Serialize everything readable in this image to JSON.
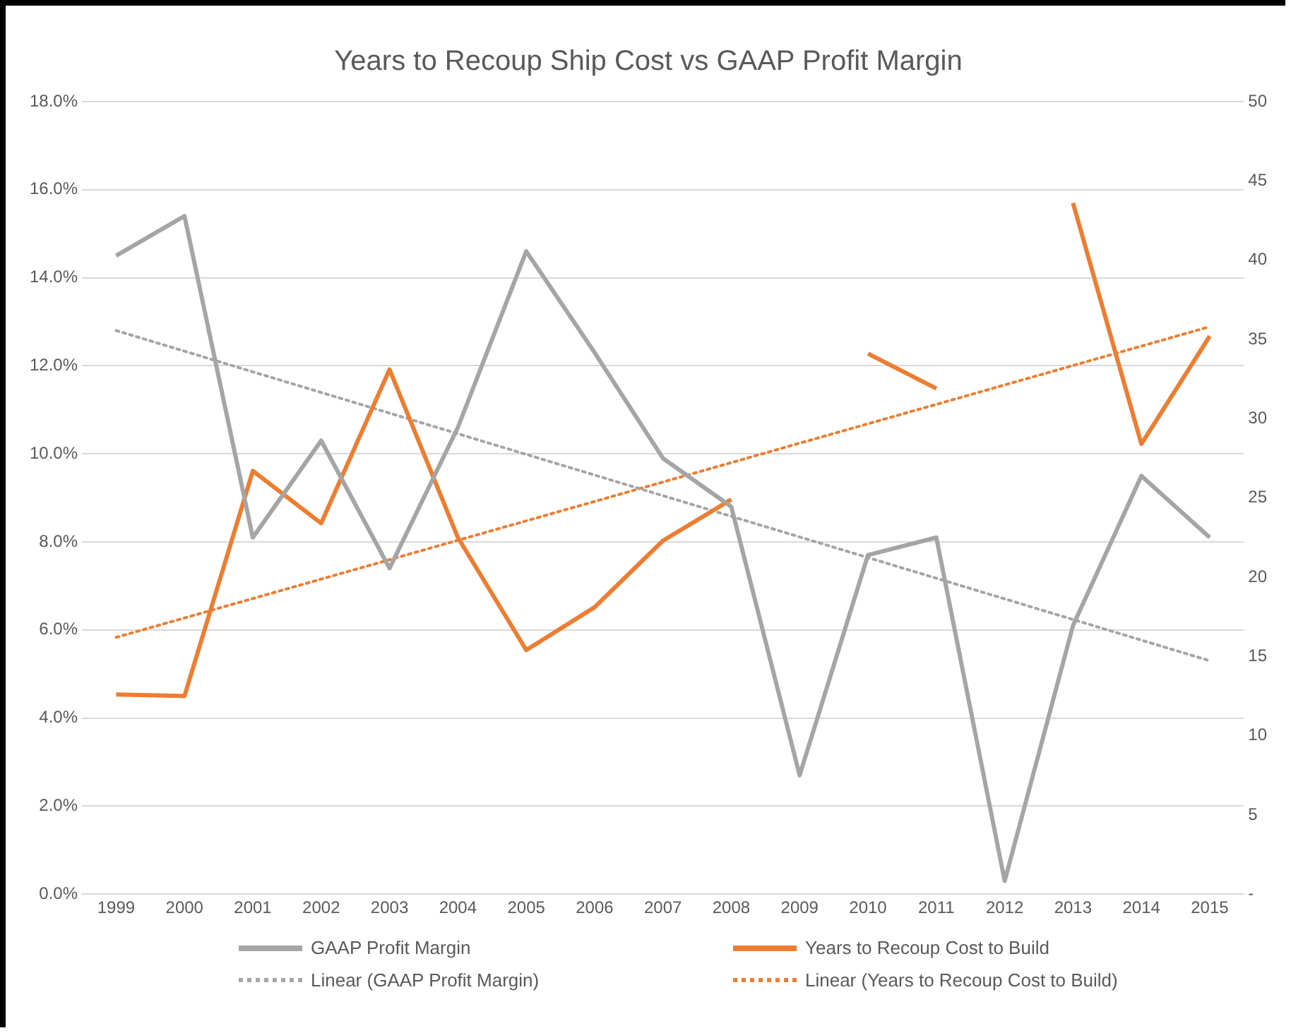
{
  "chart_data": {
    "type": "line",
    "title": "Years to Recoup Ship Cost vs GAAP Profit Margin",
    "x": [
      1999,
      2000,
      2001,
      2002,
      2003,
      2004,
      2005,
      2006,
      2007,
      2008,
      2009,
      2010,
      2011,
      2012,
      2013,
      2014,
      2015
    ],
    "xlim": [
      1998.5,
      2015.5
    ],
    "xticks": [
      1999,
      2000,
      2001,
      2002,
      2003,
      2004,
      2005,
      2006,
      2007,
      2008,
      2009,
      2010,
      2011,
      2012,
      2013,
      2014,
      2015
    ],
    "series": [
      {
        "name": "GAAP Profit Margin",
        "color": "#a5a5a5",
        "values": [
          14.5,
          15.4,
          8.1,
          10.3,
          7.4,
          10.6,
          14.6,
          12.3,
          9.9,
          8.8,
          2.7,
          7.7,
          8.1,
          0.3,
          6.1,
          9.5,
          8.1
        ]
      },
      {
        "name": "Years to Recoup Cost to Build",
        "axis": "y2",
        "color": "#ed7d31",
        "values": [
          12.6,
          12.5,
          26.7,
          23.4,
          33.1,
          22.5,
          15.4,
          18.1,
          22.3,
          24.9,
          null,
          34.1,
          31.9,
          null,
          43.6,
          28.4,
          35.2
        ]
      },
      {
        "name": "Linear (GAAP Profit Margin)",
        "line_style": "dotted",
        "color": "#a5a5a5",
        "values": [
          12.8,
          null,
          null,
          null,
          null,
          null,
          null,
          null,
          null,
          null,
          null,
          null,
          null,
          null,
          null,
          null,
          5.3
        ]
      },
      {
        "name": "Linear (Years to Recoup Cost to Build)",
        "line_style": "dotted",
        "axis": "y2",
        "color": "#ed7d31",
        "values": [
          16.2,
          null,
          null,
          null,
          null,
          null,
          null,
          null,
          null,
          null,
          null,
          null,
          null,
          null,
          null,
          null,
          35.8
        ]
      }
    ],
    "ylim": [
      0,
      18
    ],
    "yticks": [
      {
        "value": 0,
        "label": "0.0%"
      },
      {
        "value": 2,
        "label": "2.0%"
      },
      {
        "value": 4,
        "label": "4.0%"
      },
      {
        "value": 6,
        "label": "6.0%"
      },
      {
        "value": 8,
        "label": "8.0%"
      },
      {
        "value": 10,
        "label": "10.0%"
      },
      {
        "value": 12,
        "label": "12.0%"
      },
      {
        "value": 14,
        "label": "14.0%"
      },
      {
        "value": 16,
        "label": "16.0%"
      },
      {
        "value": 18,
        "label": "18.0%"
      }
    ],
    "y2lim": [
      0,
      50
    ],
    "y2ticks": [
      {
        "value": 0,
        "label": "-"
      },
      5,
      10,
      15,
      20,
      25,
      30,
      35,
      40,
      45,
      50
    ],
    "grid": "y",
    "legend": "bottom",
    "marker": "none"
  }
}
